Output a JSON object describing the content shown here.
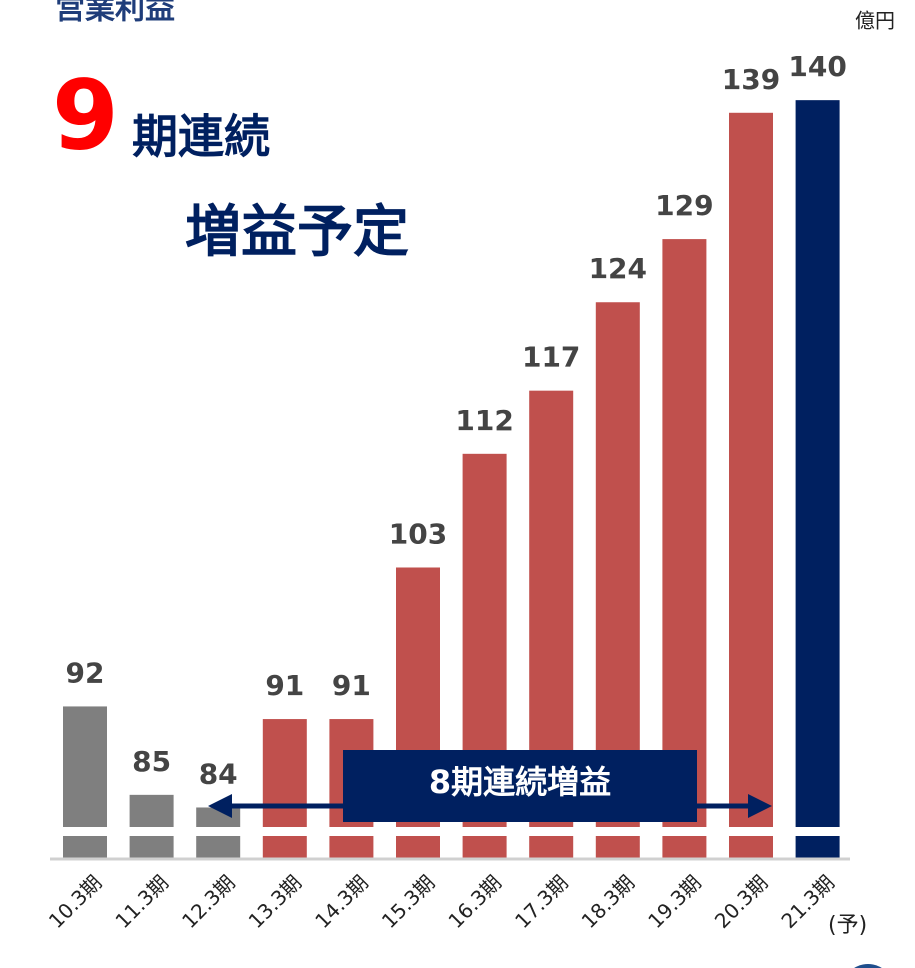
{
  "chart_data": {
    "type": "bar",
    "title": "営業利益",
    "unit": "億円",
    "headline_number": "9",
    "headline_text": "期連続",
    "headline_sub": "増益予定",
    "arrow_label": "8期連続増益",
    "forecast_note": "(予)",
    "categories": [
      "10.3期",
      "11.3期",
      "12.3期",
      "13.3期",
      "14.3期",
      "15.3期",
      "16.3期",
      "17.3期",
      "18.3期",
      "19.3期",
      "20.3期",
      "21.3期"
    ],
    "values": [
      92,
      85,
      84,
      91,
      91,
      103,
      112,
      117,
      124,
      129,
      139,
      140
    ],
    "colors": [
      "#7f7f7f",
      "#7f7f7f",
      "#7f7f7f",
      "#c0504d",
      "#c0504d",
      "#c0504d",
      "#c0504d",
      "#c0504d",
      "#c0504d",
      "#c0504d",
      "#c0504d",
      "#002060"
    ],
    "ylim": [
      80,
      145
    ]
  }
}
